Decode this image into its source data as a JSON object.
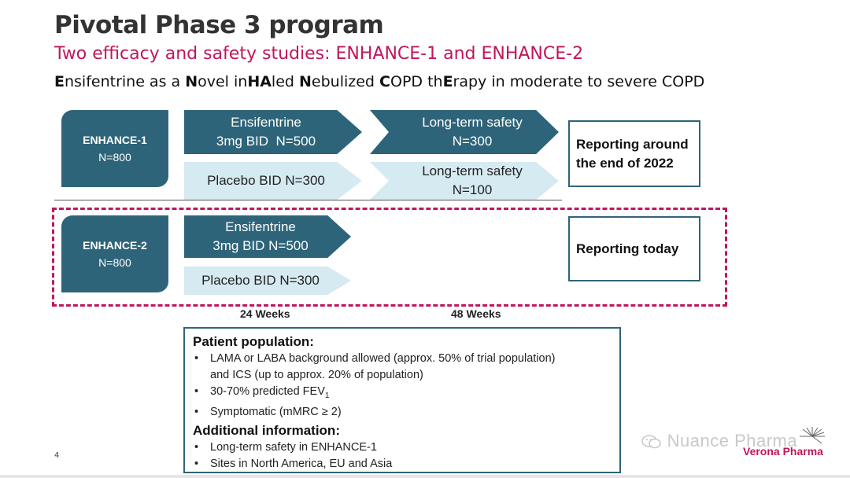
{
  "header": {
    "title": "Pivotal Phase 3 program",
    "subtitle": "Two efficacy and safety studies: ENHANCE-1 and ENHANCE-2",
    "tagline_parts": [
      {
        "b": "E",
        "t": "nsifentrine as a "
      },
      {
        "b": "N",
        "t": "ovel in"
      },
      {
        "b": "HA",
        "t": "led "
      },
      {
        "b": "N",
        "t": "ebulized "
      },
      {
        "b": "C",
        "t": "OPD th"
      },
      {
        "b": "E",
        "t": "rapy in moderate to severe COPD"
      }
    ]
  },
  "studies": {
    "enhance1": {
      "name": "ENHANCE-1",
      "n": "N=800",
      "active_line1": "Ensifentrine",
      "active_line2": "3mg BID  N=500",
      "placebo": "Placebo BID N=300",
      "lt_active_line1": "Long-term safety",
      "lt_active_line2": "N=300",
      "lt_placebo_line1": "Long-term safety",
      "lt_placebo_line2": "N=100",
      "report_line1": "Reporting around",
      "report_line2": "the end of 2022"
    },
    "enhance2": {
      "name": "ENHANCE-2",
      "n": "N=800",
      "active_line1": "Ensifentrine",
      "active_line2": "3mg BID N=500",
      "placebo": "Placebo BID N=300",
      "report": "Reporting today"
    }
  },
  "timeline": {
    "week24": "24 Weeks",
    "week48": "48 Weeks"
  },
  "info": {
    "population_heading": "Patient population:",
    "population_items": [
      "LAMA or LABA background allowed (approx. 50% of trial population)",
      "and ICS (up to approx. 20% of population)",
      "30-70% predicted FEV",
      "Symptomatic (mMRC ≥ 2)"
    ],
    "fev_subscript": "1",
    "additional_heading": "Additional information:",
    "additional_items": [
      "Long-term safety in ENHANCE-1",
      "Sites in North America, EU and Asia"
    ]
  },
  "footer": {
    "page_number": "4",
    "watermark": "Nuance Pharma",
    "brand": "Verona Pharma"
  },
  "colors": {
    "teal": "#2e6479",
    "light_blue": "#d6eaf2",
    "magenta": "#c0165c"
  }
}
